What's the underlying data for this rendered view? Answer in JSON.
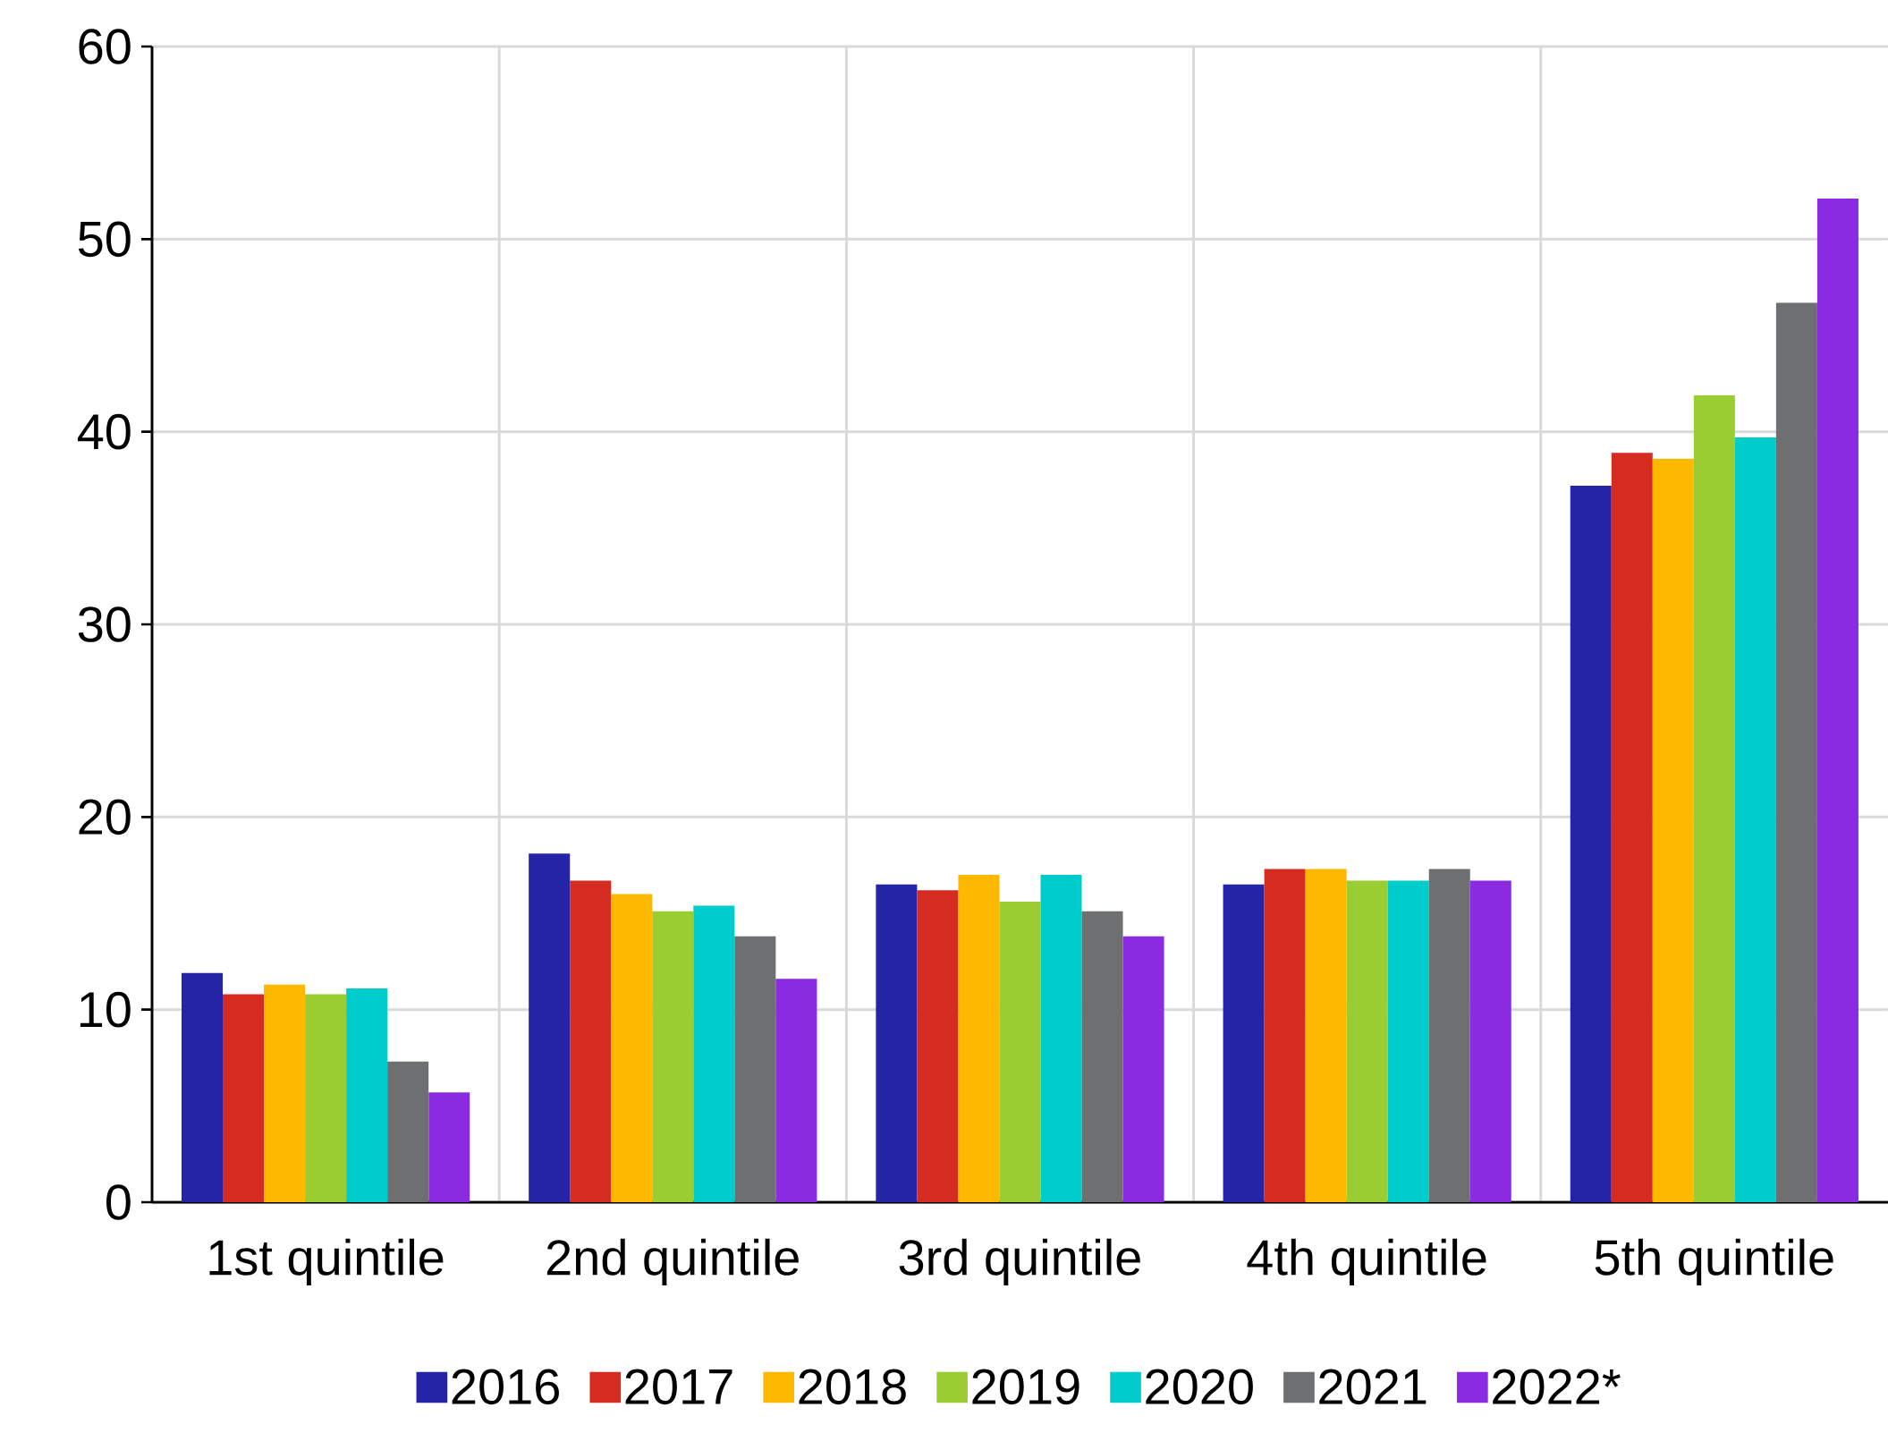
{
  "chart_data": {
    "type": "bar",
    "categories": [
      "1st quintile",
      "2nd quintile",
      "3rd quintile",
      "4th quintile",
      "5th quintile"
    ],
    "series": [
      {
        "name": "2016",
        "color": "#2424a6",
        "values": [
          11.9,
          18.1,
          16.5,
          16.5,
          37.2
        ]
      },
      {
        "name": "2017",
        "color": "#d62b20",
        "values": [
          10.8,
          16.7,
          16.2,
          17.3,
          38.9
        ]
      },
      {
        "name": "2018",
        "color": "#ffb800",
        "values": [
          11.3,
          16.0,
          17.0,
          17.3,
          38.6
        ]
      },
      {
        "name": "2019",
        "color": "#9acd32",
        "values": [
          10.8,
          15.1,
          15.6,
          16.7,
          41.9
        ]
      },
      {
        "name": "2020",
        "color": "#00cccc",
        "values": [
          11.1,
          15.4,
          17.0,
          16.7,
          39.7
        ]
      },
      {
        "name": "2021",
        "color": "#6d6f70",
        "values": [
          7.3,
          13.8,
          15.1,
          17.3,
          46.7
        ]
      },
      {
        "name": "2022*",
        "color": "#8a2be2",
        "values": [
          5.7,
          11.6,
          13.8,
          16.7,
          52.1
        ]
      }
    ],
    "ylim": [
      0,
      60
    ],
    "yticks": [
      0,
      10,
      20,
      30,
      40,
      50,
      60
    ],
    "grid": true,
    "legend": "bottom"
  }
}
